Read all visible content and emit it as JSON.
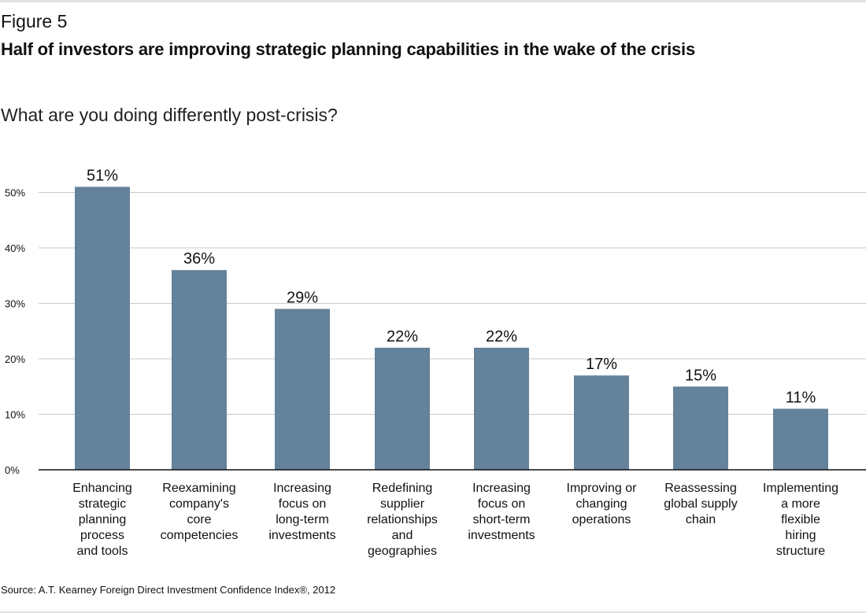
{
  "figure_label": "Figure 5",
  "title": "Half of investors are improving strategic planning capabilities in the wake of the crisis",
  "subtitle": "What are you doing differently post-crisis?",
  "source": "Source: A.T. Kearney Foreign Direct Investment Confidence Index®, 2012",
  "chart_data": {
    "type": "bar",
    "categories": [
      [
        "Enhancing",
        "strategic",
        "planning",
        "process",
        "and tools"
      ],
      [
        "Reexamining",
        "company's",
        "core",
        "competencies"
      ],
      [
        "Increasing",
        "focus on",
        "long-term",
        "investments"
      ],
      [
        "Redefining",
        "supplier",
        "relationships",
        "and",
        "geographies"
      ],
      [
        "Increasing",
        "focus on",
        "short-term",
        "investments"
      ],
      [
        "Improving or",
        "changing",
        "operations"
      ],
      [
        "Reassessing",
        "global supply",
        "chain"
      ],
      [
        "Implementing",
        "a more",
        "flexible",
        "hiring",
        "structure"
      ]
    ],
    "values": [
      51,
      36,
      29,
      22,
      22,
      17,
      15,
      11
    ],
    "data_labels": [
      "51%",
      "36%",
      "29%",
      "22%",
      "22%",
      "17%",
      "15%",
      "11%"
    ],
    "ylim": [
      0,
      50
    ],
    "yticks": [
      "0%",
      "10%",
      "20%",
      "30%",
      "40%",
      "50%"
    ],
    "grid": true,
    "bar_color": "#64829a"
  }
}
